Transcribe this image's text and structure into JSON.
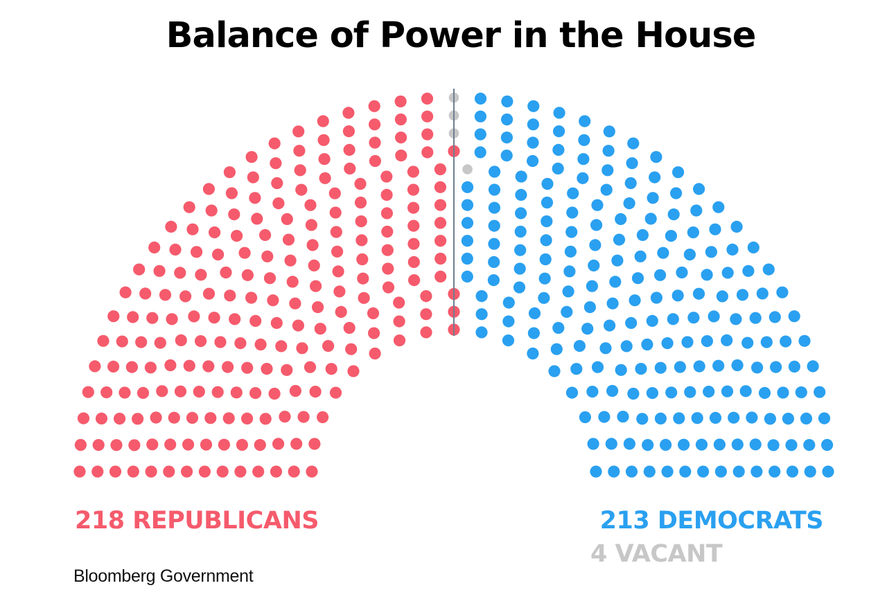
{
  "title": "Balance of Power in the House",
  "colors": {
    "republican": "#f55b6c",
    "democrat": "#2aa0f0",
    "vacant": "#c7c7c7",
    "divider": "#6e7f90"
  },
  "chart_data": {
    "type": "parliament",
    "total_seats": 435,
    "title": "Balance of Power in the House",
    "series": [
      {
        "name": "REPUBLICANS",
        "value": 218,
        "color": "#f55b6c"
      },
      {
        "name": "VACANT",
        "value": 4,
        "color": "#c7c7c7"
      },
      {
        "name": "DEMOCRATS",
        "value": 213,
        "color": "#2aa0f0"
      }
    ],
    "labels": {
      "republicans": "218 REPUBLICANS",
      "democrats": "213 DEMOCRATS",
      "vacant": "4 VACANT"
    }
  },
  "source": "Bloomberg Government"
}
